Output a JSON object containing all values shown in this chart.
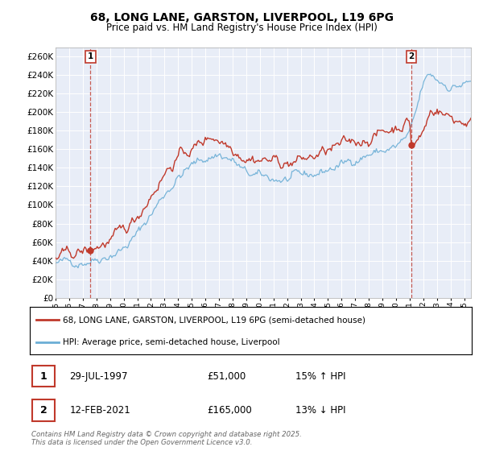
{
  "title_line1": "68, LONG LANE, GARSTON, LIVERPOOL, L19 6PG",
  "title_line2": "Price paid vs. HM Land Registry's House Price Index (HPI)",
  "ylim": [
    0,
    270000
  ],
  "yticks": [
    0,
    20000,
    40000,
    60000,
    80000,
    100000,
    120000,
    140000,
    160000,
    180000,
    200000,
    220000,
    240000,
    260000
  ],
  "ytick_labels": [
    "£0",
    "£20K",
    "£40K",
    "£60K",
    "£80K",
    "£100K",
    "£120K",
    "£140K",
    "£160K",
    "£180K",
    "£200K",
    "£220K",
    "£240K",
    "£260K"
  ],
  "hpi_color": "#6baed6",
  "price_color": "#c0392b",
  "marker1_date": 1997.57,
  "marker1_price": 51000,
  "marker1_label": "1",
  "marker2_date": 2021.12,
  "marker2_price": 165000,
  "marker2_label": "2",
  "legend_line1": "68, LONG LANE, GARSTON, LIVERPOOL, L19 6PG (semi-detached house)",
  "legend_line2": "HPI: Average price, semi-detached house, Liverpool",
  "footnote": "Contains HM Land Registry data © Crown copyright and database right 2025.\nThis data is licensed under the Open Government Licence v3.0.",
  "background_color": "#e8edf7",
  "xlim_start": 1995.0,
  "xlim_end": 2025.5
}
